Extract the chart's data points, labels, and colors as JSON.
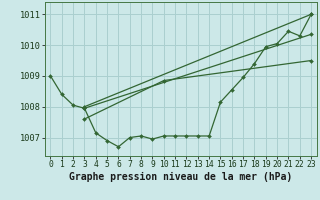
{
  "background_color": "#cce8e8",
  "grid_color": "#aacfcf",
  "line_color": "#336633",
  "marker_color": "#336633",
  "title": "Graphe pression niveau de la mer (hPa)",
  "title_fontsize": 7.0,
  "tick_fontsize": 5.8,
  "ytick_fontsize": 6.2,
  "xlim": [
    -0.5,
    23.5
  ],
  "ylim": [
    1006.4,
    1011.4
  ],
  "yticks": [
    1007,
    1008,
    1009,
    1010,
    1011
  ],
  "xticks": [
    0,
    1,
    2,
    3,
    4,
    5,
    6,
    7,
    8,
    9,
    10,
    11,
    12,
    13,
    14,
    15,
    16,
    17,
    18,
    19,
    20,
    21,
    22,
    23
  ],
  "series1_x": [
    0,
    1,
    2,
    3,
    4,
    5,
    6,
    7,
    8,
    9,
    10,
    11,
    12,
    13,
    14,
    15,
    16,
    17,
    18,
    19,
    20,
    21,
    22,
    23
  ],
  "series1_y": [
    1009.0,
    1008.4,
    1008.05,
    1007.95,
    1007.15,
    1006.9,
    1006.7,
    1007.0,
    1007.05,
    1006.95,
    1007.05,
    1007.05,
    1007.05,
    1007.05,
    1007.05,
    1008.15,
    1008.55,
    1008.95,
    1009.4,
    1009.95,
    1010.05,
    1010.45,
    1010.3,
    1011.0
  ],
  "series2_x": [
    3,
    23
  ],
  "series2_y": [
    1008.0,
    1011.0
  ],
  "series3_x": [
    3,
    23
  ],
  "series3_y": [
    1007.95,
    1010.35
  ],
  "series4_x": [
    3,
    10,
    23
  ],
  "series4_y": [
    1007.6,
    1008.85,
    1009.5
  ]
}
